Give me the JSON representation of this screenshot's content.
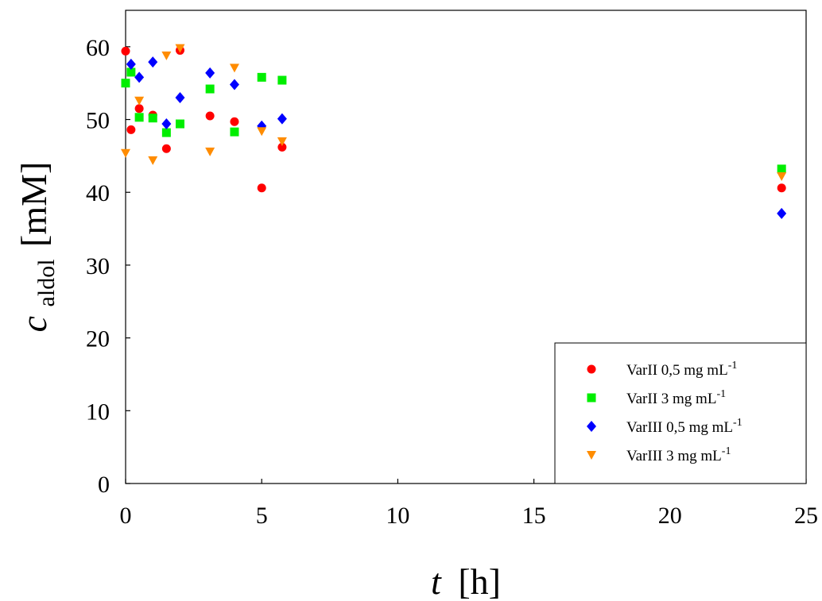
{
  "chart_data": {
    "type": "scatter",
    "xlabel": {
      "var": "t",
      "unit": "[h]"
    },
    "ylabel": {
      "var": "c",
      "sub": "aldol",
      "unit": "[mM]"
    },
    "xlim": [
      0,
      25
    ],
    "ylim": [
      0,
      65
    ],
    "xticks": [
      0,
      5,
      10,
      15,
      20,
      25
    ],
    "yticks": [
      0,
      10,
      20,
      30,
      40,
      50,
      60
    ],
    "grid": false,
    "legend_position": "bottom-right",
    "series": [
      {
        "name": "VarII 0,5 mg mL-1",
        "label_main": "VarII 0,5 mg mL",
        "label_sup": "-1",
        "marker": "circle",
        "color": "#ff0000",
        "points": [
          [
            0,
            59.4
          ],
          [
            0.2,
            48.6
          ],
          [
            0.5,
            51.5
          ],
          [
            1,
            50.6
          ],
          [
            1.5,
            46
          ],
          [
            2,
            59.5
          ],
          [
            3.1,
            50.5
          ],
          [
            4,
            49.7
          ],
          [
            5,
            40.6
          ],
          [
            5.75,
            46.2
          ],
          [
            24.1,
            40.6
          ]
        ]
      },
      {
        "name": "VarII 3 mg mL-1",
        "label_main": "VarII 3 mg mL",
        "label_sup": "-1",
        "marker": "square",
        "color": "#00ee00",
        "points": [
          [
            0,
            55
          ],
          [
            0.2,
            56.5
          ],
          [
            0.5,
            50.3
          ],
          [
            1,
            50.2
          ],
          [
            1.5,
            48.2
          ],
          [
            2,
            49.4
          ],
          [
            3.1,
            54.2
          ],
          [
            4,
            48.3
          ],
          [
            5,
            55.8
          ],
          [
            5.75,
            55.4
          ],
          [
            24.1,
            43.2
          ]
        ]
      },
      {
        "name": "VarIII 0,5 mg mL-1",
        "label_main": "VarIII 0,5 mg mL",
        "label_sup": "-1",
        "marker": "diamond",
        "color": "#0000ff",
        "points": [
          [
            0.2,
            57.6
          ],
          [
            0.5,
            55.8
          ],
          [
            1,
            57.9
          ],
          [
            1.5,
            49.4
          ],
          [
            2,
            53
          ],
          [
            3.1,
            56.4
          ],
          [
            4,
            54.8
          ],
          [
            5,
            49.1
          ],
          [
            5.75,
            50.1
          ],
          [
            24.1,
            37.1
          ]
        ]
      },
      {
        "name": "VarIII 3 mg mL-1",
        "label_main": "VarIII 3 mg mL",
        "label_sup": "-1",
        "marker": "triangle-down",
        "color": "#ff8c00",
        "points": [
          [
            0,
            45.4
          ],
          [
            0.5,
            52.6
          ],
          [
            1,
            44.4
          ],
          [
            1.5,
            58.8
          ],
          [
            2,
            59.8
          ],
          [
            3.1,
            45.6
          ],
          [
            4,
            57.1
          ],
          [
            5,
            48.4
          ],
          [
            5.75,
            47
          ],
          [
            24.1,
            42.2
          ]
        ]
      }
    ]
  }
}
